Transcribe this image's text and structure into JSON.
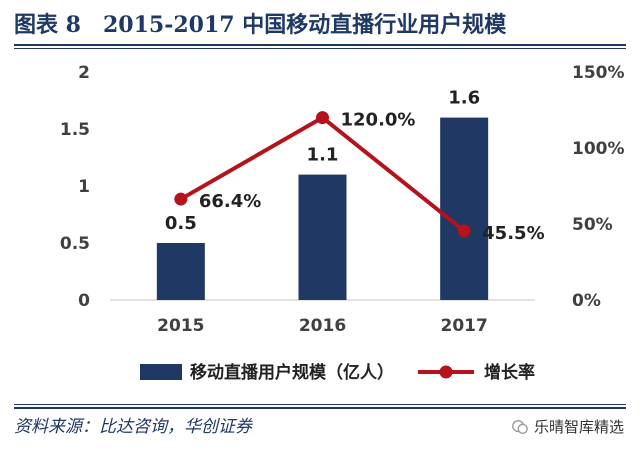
{
  "title": "图表 8　2015-2017 中国移动直播行业用户规模",
  "source": "资料来源：比达咨询，华创证券",
  "watermark": "乐晴智库精选",
  "colors": {
    "bar": "#1f3864",
    "line": "#b5121b",
    "title": "#1f3864",
    "axis": "#d9d9d9"
  },
  "chart_data": {
    "type": "bar",
    "categories": [
      "2015",
      "2016",
      "2017"
    ],
    "series": [
      {
        "name": "移动直播用户规模（亿人）",
        "kind": "bar",
        "axis": "left",
        "values": [
          0.5,
          1.1,
          1.6
        ],
        "labels": [
          "0.5",
          "1.1",
          "1.6"
        ]
      },
      {
        "name": "增长率",
        "kind": "line",
        "axis": "right",
        "values": [
          66.4,
          120.0,
          45.5
        ],
        "labels": [
          "66.4%",
          "120.0%",
          "45.5%"
        ]
      }
    ],
    "y_left": {
      "lim": [
        0,
        2
      ],
      "ticks": [
        0,
        0.5,
        1,
        1.5,
        2
      ],
      "tick_labels": [
        "0",
        "0.5",
        "1",
        "1.5",
        "2"
      ]
    },
    "y_right": {
      "lim": [
        0,
        150
      ],
      "ticks": [
        0,
        50,
        100,
        150
      ],
      "tick_labels": [
        "0%",
        "50%",
        "100%",
        "150%"
      ]
    },
    "legend": "bottom",
    "grid": false
  }
}
